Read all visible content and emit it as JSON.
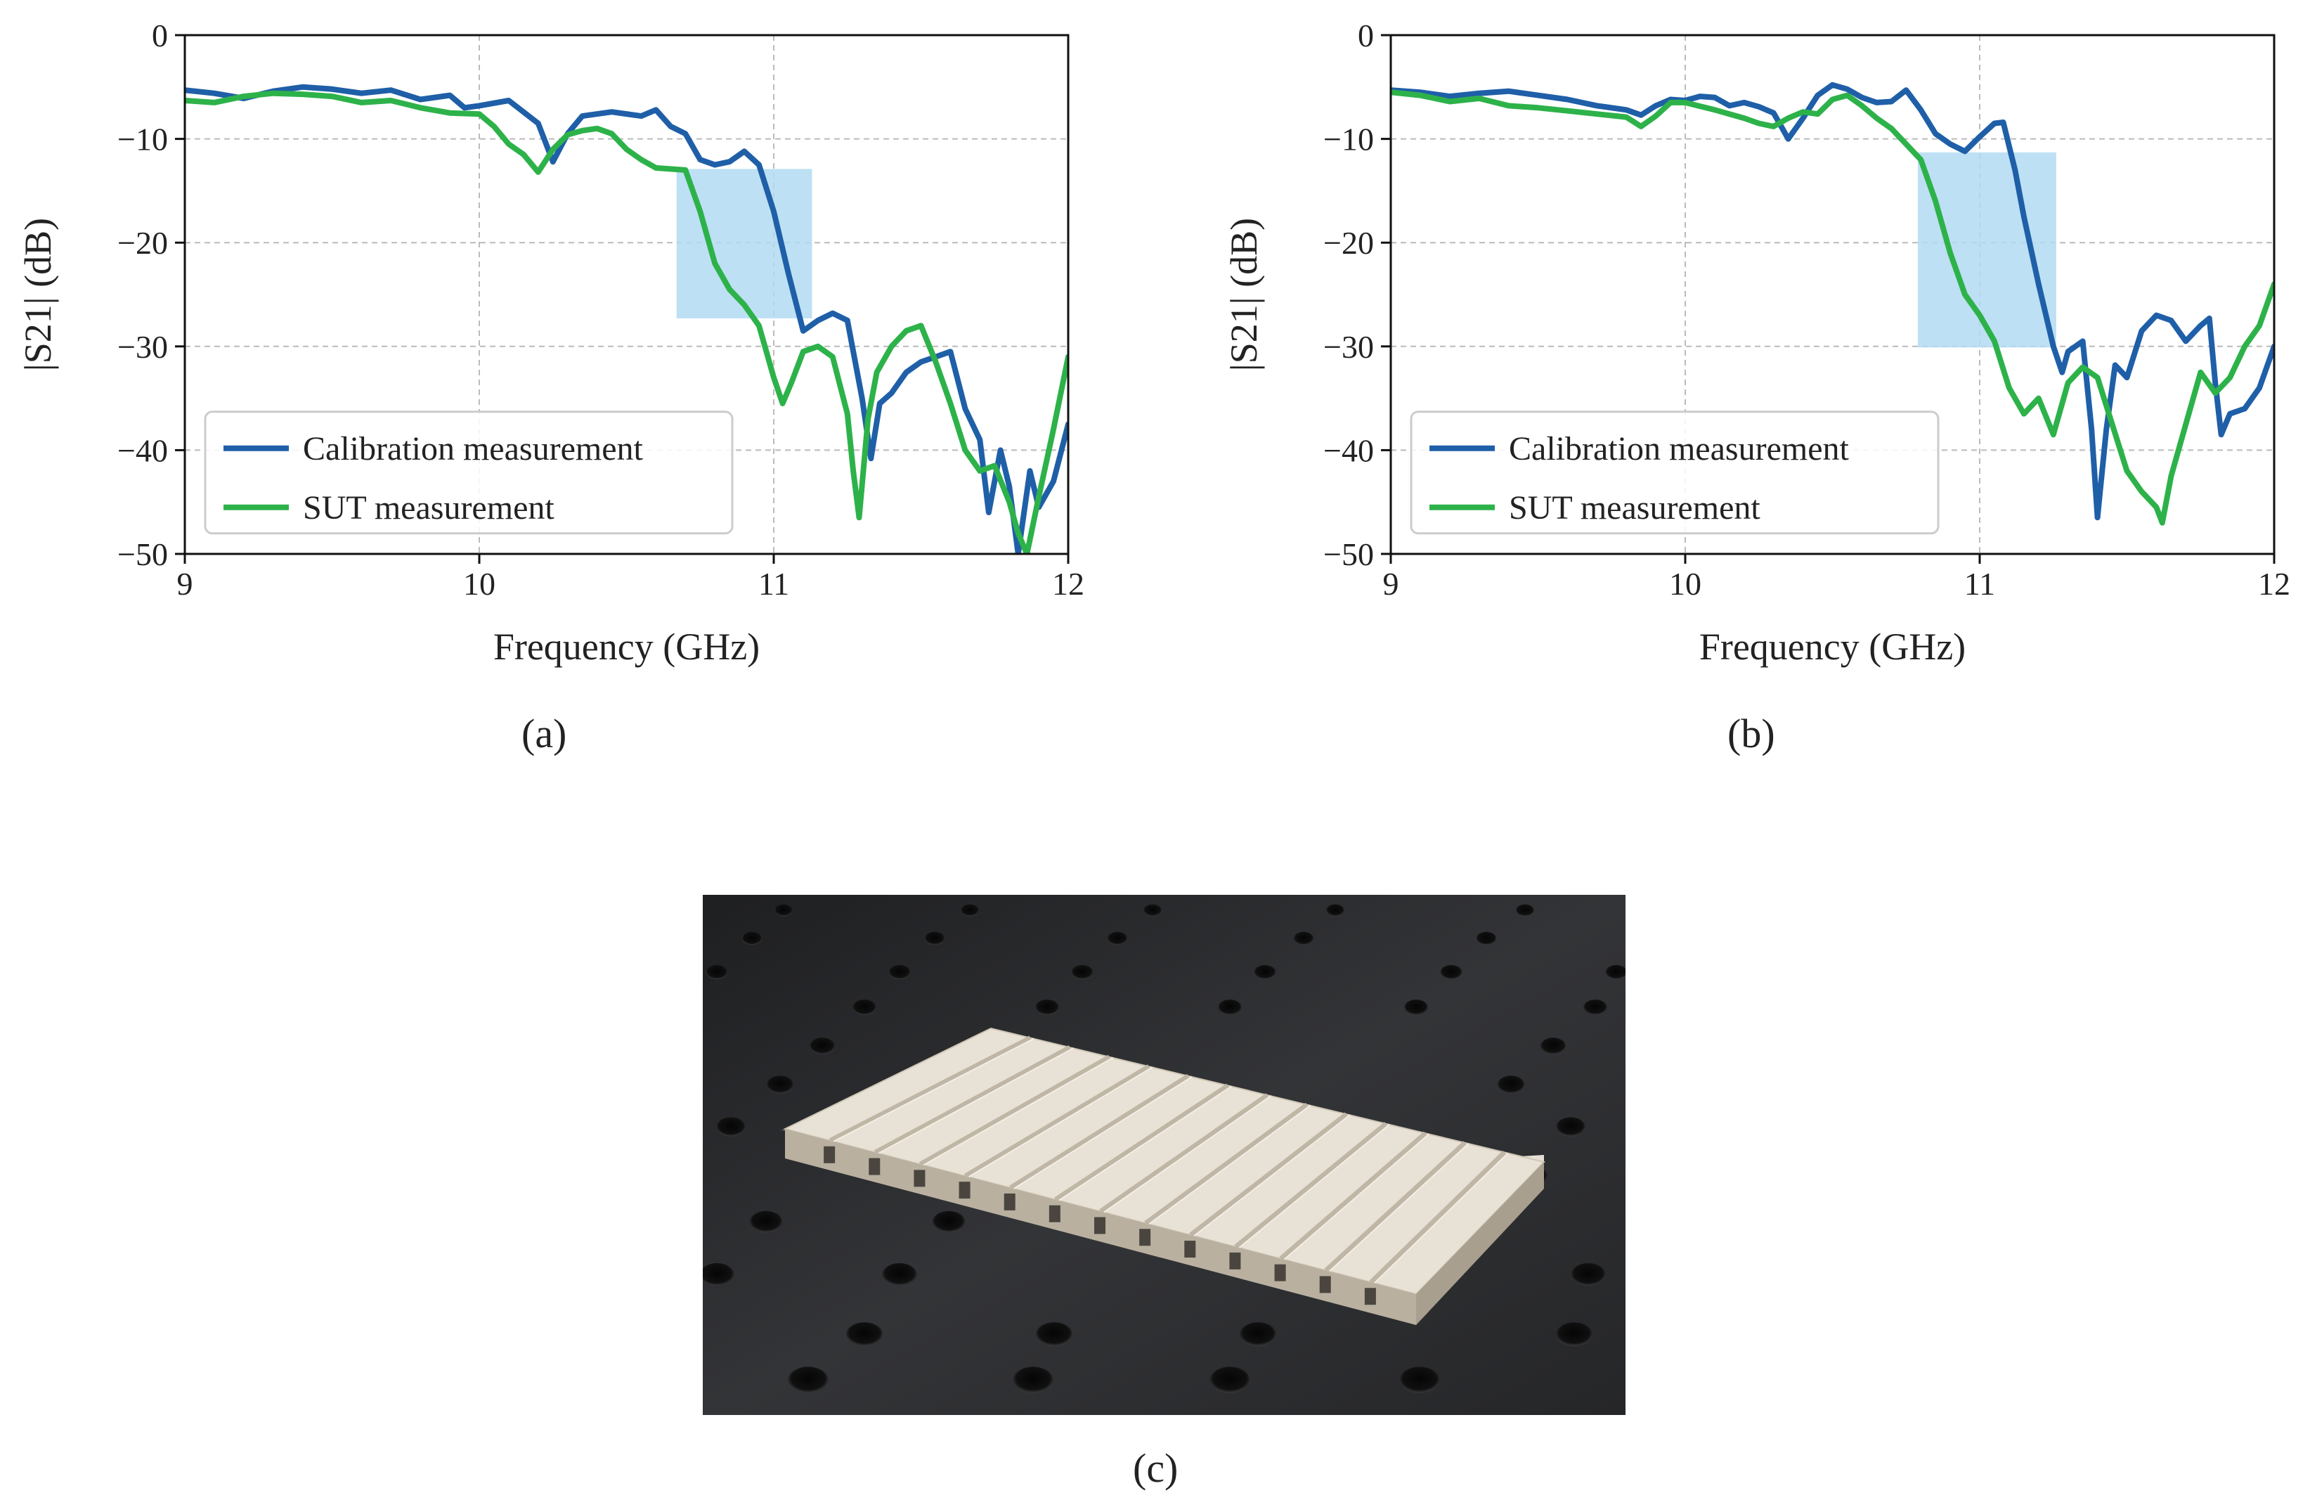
{
  "figure": {
    "sub_labels": {
      "a": "(a)",
      "b": "(b)",
      "c": "(c)"
    },
    "photo": {
      "description_hidden": true
    }
  },
  "colors": {
    "calibration": "#1f5fa8",
    "sut": "#2db24a",
    "highlight": "#b3daf2",
    "grid": "#bbbbbb",
    "photo_bg": "#2b2c2e",
    "sample": "#e4ddd1"
  },
  "chart_data": [
    {
      "type": "line",
      "panel": "(a)",
      "xlabel": "Frequency (GHz)",
      "ylabel": "|S21| (dB)",
      "xlim": [
        9,
        12
      ],
      "ylim": [
        -50,
        0
      ],
      "xticks": [
        9,
        10,
        11,
        12
      ],
      "yticks": [
        0,
        -10,
        -20,
        -30,
        -40,
        -50
      ],
      "grid": true,
      "legend_position": "lower-left",
      "highlight_box": {
        "x": [
          10.67,
          11.13
        ],
        "y": [
          -27.3,
          -12.9
        ]
      },
      "series": [
        {
          "name": "Calibration measurement",
          "color_key": "calibration",
          "points": [
            [
              9.0,
              -5.3
            ],
            [
              9.1,
              -5.6
            ],
            [
              9.2,
              -6.1
            ],
            [
              9.3,
              -5.4
            ],
            [
              9.4,
              -5.0
            ],
            [
              9.5,
              -5.2
            ],
            [
              9.6,
              -5.6
            ],
            [
              9.7,
              -5.3
            ],
            [
              9.8,
              -6.2
            ],
            [
              9.9,
              -5.8
            ],
            [
              9.95,
              -7.0
            ],
            [
              10.0,
              -6.8
            ],
            [
              10.1,
              -6.3
            ],
            [
              10.2,
              -8.5
            ],
            [
              10.25,
              -12.2
            ],
            [
              10.3,
              -9.5
            ],
            [
              10.35,
              -7.8
            ],
            [
              10.45,
              -7.4
            ],
            [
              10.55,
              -7.8
            ],
            [
              10.6,
              -7.2
            ],
            [
              10.65,
              -8.8
            ],
            [
              10.7,
              -9.5
            ],
            [
              10.75,
              -12.0
            ],
            [
              10.8,
              -12.5
            ],
            [
              10.85,
              -12.2
            ],
            [
              10.9,
              -11.2
            ],
            [
              10.95,
              -12.5
            ],
            [
              11.0,
              -17.0
            ],
            [
              11.05,
              -23.0
            ],
            [
              11.1,
              -28.5
            ],
            [
              11.15,
              -27.5
            ],
            [
              11.2,
              -26.8
            ],
            [
              11.25,
              -27.5
            ],
            [
              11.3,
              -35.0
            ],
            [
              11.33,
              -40.8
            ],
            [
              11.36,
              -35.5
            ],
            [
              11.4,
              -34.5
            ],
            [
              11.45,
              -32.5
            ],
            [
              11.5,
              -31.5
            ],
            [
              11.55,
              -31.0
            ],
            [
              11.6,
              -30.5
            ],
            [
              11.65,
              -36.0
            ],
            [
              11.7,
              -39.0
            ],
            [
              11.73,
              -46.0
            ],
            [
              11.77,
              -40.0
            ],
            [
              11.8,
              -43.5
            ],
            [
              11.83,
              -50.0
            ],
            [
              11.87,
              -42.0
            ],
            [
              11.9,
              -45.5
            ],
            [
              11.95,
              -43.0
            ],
            [
              12.0,
              -37.5
            ]
          ]
        },
        {
          "name": "SUT measurement",
          "color_key": "sut",
          "points": [
            [
              9.0,
              -6.3
            ],
            [
              9.1,
              -6.5
            ],
            [
              9.2,
              -5.9
            ],
            [
              9.3,
              -5.6
            ],
            [
              9.4,
              -5.7
            ],
            [
              9.5,
              -5.9
            ],
            [
              9.6,
              -6.5
            ],
            [
              9.7,
              -6.3
            ],
            [
              9.8,
              -7.0
            ],
            [
              9.9,
              -7.5
            ],
            [
              10.0,
              -7.6
            ],
            [
              10.05,
              -8.8
            ],
            [
              10.1,
              -10.5
            ],
            [
              10.15,
              -11.5
            ],
            [
              10.2,
              -13.2
            ],
            [
              10.25,
              -11.0
            ],
            [
              10.3,
              -9.6
            ],
            [
              10.35,
              -9.2
            ],
            [
              10.4,
              -9.0
            ],
            [
              10.45,
              -9.5
            ],
            [
              10.5,
              -11.0
            ],
            [
              10.55,
              -12.0
            ],
            [
              10.6,
              -12.8
            ],
            [
              10.65,
              -12.9
            ],
            [
              10.7,
              -13.0
            ],
            [
              10.75,
              -17.0
            ],
            [
              10.8,
              -22.0
            ],
            [
              10.85,
              -24.5
            ],
            [
              10.9,
              -26.0
            ],
            [
              10.95,
              -28.0
            ],
            [
              11.0,
              -33.0
            ],
            [
              11.03,
              -35.5
            ],
            [
              11.06,
              -33.5
            ],
            [
              11.1,
              -30.5
            ],
            [
              11.15,
              -30.0
            ],
            [
              11.2,
              -31.0
            ],
            [
              11.25,
              -36.5
            ],
            [
              11.27,
              -42.0
            ],
            [
              11.29,
              -46.5
            ],
            [
              11.32,
              -37.0
            ],
            [
              11.35,
              -32.5
            ],
            [
              11.4,
              -30.0
            ],
            [
              11.45,
              -28.5
            ],
            [
              11.5,
              -28.0
            ],
            [
              11.55,
              -31.5
            ],
            [
              11.6,
              -35.5
            ],
            [
              11.65,
              -40.0
            ],
            [
              11.7,
              -42.0
            ],
            [
              11.75,
              -41.5
            ],
            [
              11.8,
              -45.0
            ],
            [
              11.83,
              -48.0
            ],
            [
              11.86,
              -50.0
            ],
            [
              11.9,
              -44.5
            ],
            [
              11.95,
              -38.0
            ],
            [
              12.0,
              -31.0
            ]
          ]
        }
      ]
    },
    {
      "type": "line",
      "panel": "(b)",
      "xlabel": "Frequency (GHz)",
      "ylabel": "|S21| (dB)",
      "xlim": [
        9,
        12
      ],
      "ylim": [
        -50,
        0
      ],
      "xticks": [
        9,
        10,
        11,
        12
      ],
      "yticks": [
        0,
        -10,
        -20,
        -30,
        -40,
        -50
      ],
      "grid": true,
      "legend_position": "lower-left",
      "highlight_box": {
        "x": [
          10.79,
          11.26
        ],
        "y": [
          -30.1,
          -11.3
        ]
      },
      "series": [
        {
          "name": "Calibration measurement",
          "color_key": "calibration",
          "points": [
            [
              9.0,
              -5.3
            ],
            [
              9.1,
              -5.5
            ],
            [
              9.2,
              -5.9
            ],
            [
              9.3,
              -5.6
            ],
            [
              9.4,
              -5.4
            ],
            [
              9.5,
              -5.8
            ],
            [
              9.6,
              -6.2
            ],
            [
              9.7,
              -6.8
            ],
            [
              9.8,
              -7.2
            ],
            [
              9.85,
              -7.7
            ],
            [
              9.9,
              -6.8
            ],
            [
              9.95,
              -6.2
            ],
            [
              10.0,
              -6.3
            ],
            [
              10.05,
              -5.9
            ],
            [
              10.1,
              -6.0
            ],
            [
              10.15,
              -6.8
            ],
            [
              10.2,
              -6.5
            ],
            [
              10.25,
              -6.9
            ],
            [
              10.3,
              -7.5
            ],
            [
              10.35,
              -10.0
            ],
            [
              10.4,
              -8.0
            ],
            [
              10.45,
              -5.8
            ],
            [
              10.5,
              -4.8
            ],
            [
              10.55,
              -5.2
            ],
            [
              10.6,
              -6.0
            ],
            [
              10.65,
              -6.5
            ],
            [
              10.7,
              -6.4
            ],
            [
              10.75,
              -5.3
            ],
            [
              10.8,
              -7.2
            ],
            [
              10.85,
              -9.5
            ],
            [
              10.9,
              -10.5
            ],
            [
              10.95,
              -11.2
            ],
            [
              11.0,
              -9.8
            ],
            [
              11.05,
              -8.5
            ],
            [
              11.08,
              -8.4
            ],
            [
              11.12,
              -13.0
            ],
            [
              11.15,
              -17.5
            ],
            [
              11.2,
              -24.0
            ],
            [
              11.25,
              -30.0
            ],
            [
              11.28,
              -32.5
            ],
            [
              11.3,
              -30.5
            ],
            [
              11.35,
              -29.5
            ],
            [
              11.38,
              -38.0
            ],
            [
              11.4,
              -46.5
            ],
            [
              11.43,
              -38.0
            ],
            [
              11.46,
              -31.8
            ],
            [
              11.5,
              -33.0
            ],
            [
              11.55,
              -28.5
            ],
            [
              11.6,
              -27.0
            ],
            [
              11.65,
              -27.5
            ],
            [
              11.7,
              -29.5
            ],
            [
              11.75,
              -28.0
            ],
            [
              11.78,
              -27.3
            ],
            [
              11.8,
              -33.5
            ],
            [
              11.82,
              -38.5
            ],
            [
              11.85,
              -36.5
            ],
            [
              11.9,
              -36.0
            ],
            [
              11.95,
              -34.0
            ],
            [
              12.0,
              -30.0
            ]
          ]
        },
        {
          "name": "SUT measurement",
          "color_key": "sut",
          "points": [
            [
              9.0,
              -5.5
            ],
            [
              9.1,
              -5.8
            ],
            [
              9.2,
              -6.4
            ],
            [
              9.3,
              -6.1
            ],
            [
              9.4,
              -6.8
            ],
            [
              9.5,
              -7.0
            ],
            [
              9.6,
              -7.3
            ],
            [
              9.7,
              -7.6
            ],
            [
              9.8,
              -7.9
            ],
            [
              9.85,
              -8.8
            ],
            [
              9.9,
              -7.8
            ],
            [
              9.95,
              -6.5
            ],
            [
              10.0,
              -6.5
            ],
            [
              10.1,
              -7.2
            ],
            [
              10.2,
              -8.0
            ],
            [
              10.25,
              -8.5
            ],
            [
              10.3,
              -8.8
            ],
            [
              10.35,
              -8.0
            ],
            [
              10.4,
              -7.4
            ],
            [
              10.45,
              -7.6
            ],
            [
              10.5,
              -6.2
            ],
            [
              10.55,
              -5.8
            ],
            [
              10.6,
              -6.8
            ],
            [
              10.65,
              -8.0
            ],
            [
              10.7,
              -9.0
            ],
            [
              10.75,
              -10.5
            ],
            [
              10.8,
              -12.0
            ],
            [
              10.85,
              -16.0
            ],
            [
              10.9,
              -21.0
            ],
            [
              10.95,
              -25.0
            ],
            [
              11.0,
              -27.0
            ],
            [
              11.05,
              -29.5
            ],
            [
              11.1,
              -34.0
            ],
            [
              11.15,
              -36.5
            ],
            [
              11.2,
              -35.0
            ],
            [
              11.25,
              -38.5
            ],
            [
              11.3,
              -33.5
            ],
            [
              11.35,
              -32.0
            ],
            [
              11.4,
              -33.0
            ],
            [
              11.45,
              -37.5
            ],
            [
              11.5,
              -42.0
            ],
            [
              11.55,
              -44.0
            ],
            [
              11.6,
              -45.5
            ],
            [
              11.62,
              -47.0
            ],
            [
              11.65,
              -42.5
            ],
            [
              11.7,
              -37.5
            ],
            [
              11.75,
              -32.5
            ],
            [
              11.8,
              -34.5
            ],
            [
              11.85,
              -33.0
            ],
            [
              11.9,
              -30.0
            ],
            [
              11.95,
              -28.0
            ],
            [
              12.0,
              -24.0
            ]
          ]
        }
      ]
    }
  ]
}
